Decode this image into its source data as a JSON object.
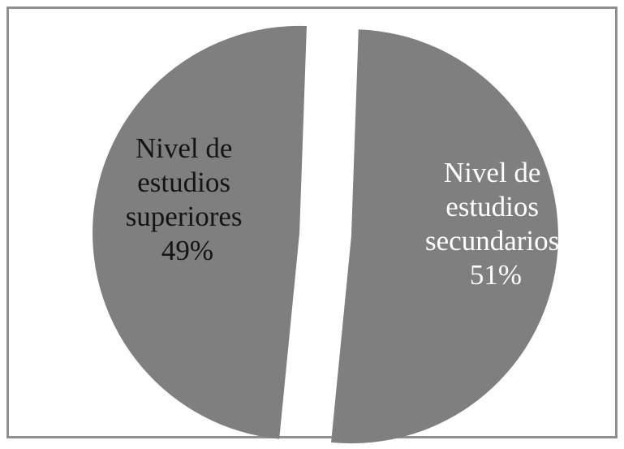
{
  "chart_data": {
    "type": "pie",
    "exploded": true,
    "slices": [
      {
        "label_lines": [
          "Nivel de",
          "estudios",
          "superiores",
          "49%"
        ],
        "value": 49,
        "color": "#7f7f7f",
        "label_color": "#141414"
      },
      {
        "label_lines": [
          "Nivel de",
          "estudios",
          "secundarios",
          "51%"
        ],
        "value": 51,
        "color": "#7f7f7f",
        "label_color": "#ffffff"
      }
    ]
  }
}
